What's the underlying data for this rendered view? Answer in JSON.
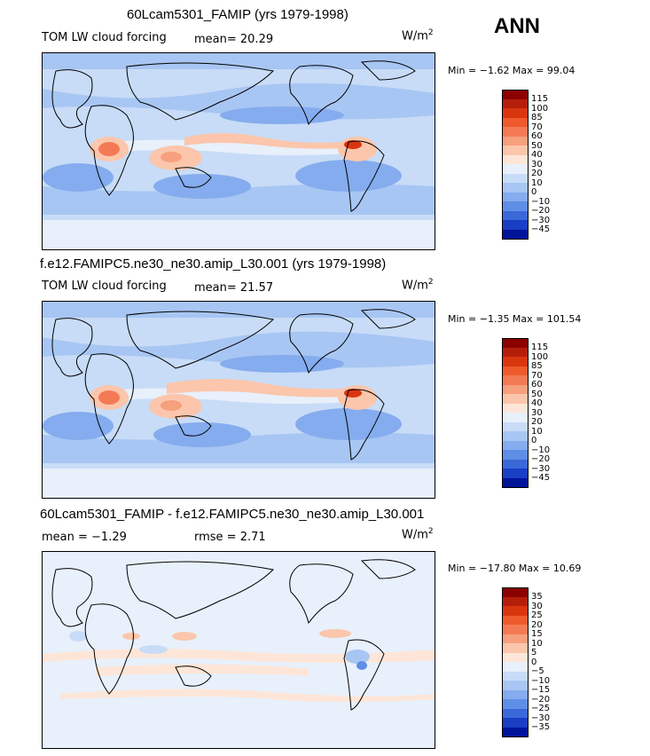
{
  "season": "ANN",
  "panels": [
    {
      "title": "60Lcam5301_FAMIP (yrs 1979-1998)",
      "left_label": "TOM LW cloud forcing",
      "mid_label": "mean=  20.29",
      "units": "W/m",
      "units_sup": "2",
      "minmax": "Min =  −1.62 Max =  99.04",
      "colorbar": {
        "labels": [
          "115",
          "100",
          "85",
          "70",
          "60",
          "50",
          "40",
          "30",
          "20",
          "10",
          "0",
          "−10",
          "−20",
          "−30",
          "−45"
        ],
        "colors": [
          "#8b0000",
          "#b51e0a",
          "#d9360f",
          "#ef5a2c",
          "#f47a55",
          "#f7a07e",
          "#fbc6ab",
          "#fde6d8",
          "#e8f0fb",
          "#c8dcf7",
          "#a8c6f3",
          "#85acee",
          "#5f8ee6",
          "#3a68d9",
          "#1a3ec4",
          "#00149a"
        ]
      }
    },
    {
      "title": "f.e12.FAMIPC5.ne30_ne30.amip_L30.001 (yrs 1979-1998)",
      "left_label": "TOM LW cloud forcing",
      "mid_label": "mean=  21.57",
      "units": "W/m",
      "units_sup": "2",
      "minmax": "Min =  −1.35 Max = 101.54",
      "colorbar": {
        "labels": [
          "115",
          "100",
          "85",
          "70",
          "60",
          "50",
          "40",
          "30",
          "20",
          "10",
          "0",
          "−10",
          "−20",
          "−30",
          "−45"
        ],
        "colors": [
          "#8b0000",
          "#b51e0a",
          "#d9360f",
          "#ef5a2c",
          "#f47a55",
          "#f7a07e",
          "#fbc6ab",
          "#fde6d8",
          "#e8f0fb",
          "#c8dcf7",
          "#a8c6f3",
          "#85acee",
          "#5f8ee6",
          "#3a68d9",
          "#1a3ec4",
          "#00149a"
        ]
      }
    },
    {
      "title": "60Lcam5301_FAMIP - f.e12.FAMIPC5.ne30_ne30.amip_L30.001",
      "left_label": "mean =  −1.29",
      "mid_label": "rmse =   2.71",
      "units": "W/m",
      "units_sup": "2",
      "minmax": "Min = −17.80 Max =  10.69",
      "colorbar": {
        "labels": [
          "35",
          "30",
          "25",
          "20",
          "15",
          "10",
          "5",
          "0",
          "−5",
          "−10",
          "−15",
          "−20",
          "−25",
          "−30",
          "−35"
        ],
        "colors": [
          "#8b0000",
          "#b51e0a",
          "#d9360f",
          "#ef5a2c",
          "#f47a55",
          "#f7a07e",
          "#fbc6ab",
          "#fde6d8",
          "#e8f0fb",
          "#c8dcf7",
          "#a8c6f3",
          "#85acee",
          "#5f8ee6",
          "#3a68d9",
          "#1a3ec4",
          "#00149a"
        ]
      }
    }
  ]
}
